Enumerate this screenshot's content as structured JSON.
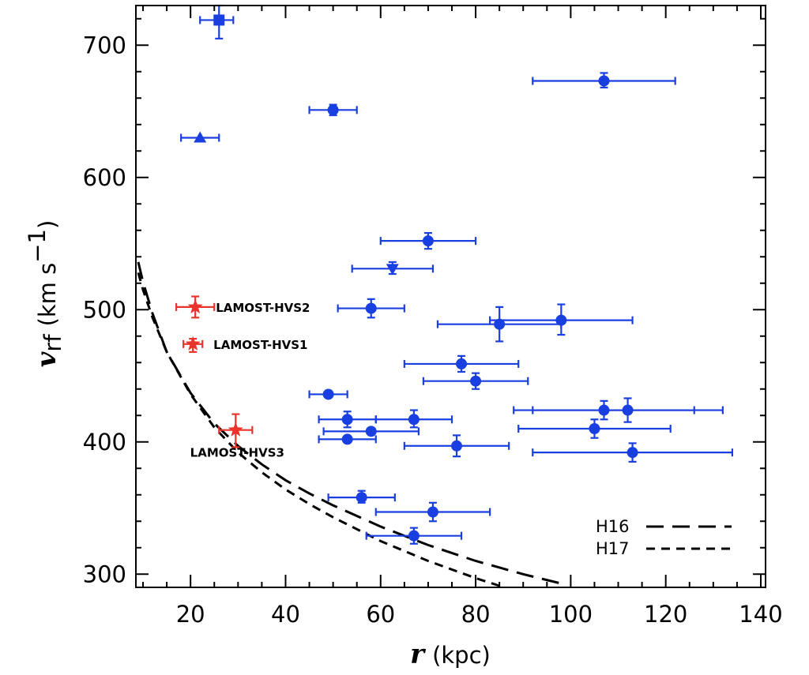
{
  "chart_data": {
    "type": "scatter",
    "xlabel": "r",
    "xlabel_unit": "(kpc)",
    "ylabel": "v",
    "ylabel_sub": "rf",
    "ylabel_unit_pre": "(km s",
    "ylabel_unit_sup": "−1",
    "ylabel_unit_post": ")",
    "xlim": [
      8.5,
      141
    ],
    "ylim": [
      290,
      730
    ],
    "xticks": [
      20,
      40,
      60,
      80,
      100,
      120,
      140
    ],
    "yticks": [
      300,
      400,
      500,
      600,
      700
    ],
    "xtick_labels": [
      "20",
      "40",
      "60",
      "80",
      "100",
      "120",
      "140"
    ],
    "ytick_labels": [
      "300",
      "400",
      "500",
      "600",
      "700"
    ],
    "grid": false,
    "colors": {
      "blue": "#1a3fe0",
      "red": "#e8342a",
      "axis": "#000000"
    },
    "series": [
      {
        "color": "#1a3fe0",
        "points": [
          {
            "x": 26,
            "y": 719,
            "xerr": [
              22,
              29
            ],
            "yerr": [
              705,
              730
            ],
            "marker": "square"
          },
          {
            "x": 22,
            "y": 630,
            "xerr": [
              18,
              26
            ],
            "yerr": [
              630,
              630
            ],
            "marker": "triangle-up"
          },
          {
            "x": 50,
            "y": 651,
            "xerr": [
              45,
              55
            ],
            "yerr": [
              647,
              655
            ],
            "marker": "circle"
          },
          {
            "x": 107,
            "y": 673,
            "xerr": [
              92,
              122
            ],
            "yerr": [
              668,
              679
            ],
            "marker": "circle"
          },
          {
            "x": 70,
            "y": 552,
            "xerr": [
              60,
              80
            ],
            "yerr": [
              546,
              558
            ],
            "marker": "circle"
          },
          {
            "x": 62.5,
            "y": 531,
            "xerr": [
              54,
              71
            ],
            "yerr": [
              527,
              536
            ],
            "marker": "triangle-down"
          },
          {
            "x": 58,
            "y": 501,
            "xerr": [
              51,
              65
            ],
            "yerr": [
              494,
              508
            ],
            "marker": "circle"
          },
          {
            "x": 85,
            "y": 489,
            "xerr": [
              72,
              98
            ],
            "yerr": [
              476,
              502
            ],
            "marker": "circle"
          },
          {
            "x": 98,
            "y": 492,
            "xerr": [
              83,
              113
            ],
            "yerr": [
              481,
              504
            ],
            "marker": "circle"
          },
          {
            "x": 77,
            "y": 459,
            "xerr": [
              65,
              89
            ],
            "yerr": [
              453,
              465
            ],
            "marker": "circle"
          },
          {
            "x": 80,
            "y": 446,
            "xerr": [
              69,
              91
            ],
            "yerr": [
              440,
              452
            ],
            "marker": "circle"
          },
          {
            "x": 49,
            "y": 436,
            "xerr": [
              45,
              53
            ],
            "yerr": [
              436,
              436
            ],
            "marker": "circle"
          },
          {
            "x": 53,
            "y": 417,
            "xerr": [
              47,
              59
            ],
            "yerr": [
              411,
              423
            ],
            "marker": "circle"
          },
          {
            "x": 67,
            "y": 417,
            "xerr": [
              59,
              75
            ],
            "yerr": [
              411,
              424
            ],
            "marker": "circle"
          },
          {
            "x": 58,
            "y": 408,
            "xerr": [
              48,
              68
            ],
            "yerr": [
              408,
              408
            ],
            "marker": "circle"
          },
          {
            "x": 53,
            "y": 402,
            "xerr": [
              47,
              59
            ],
            "yerr": [
              402,
              402
            ],
            "marker": "circle"
          },
          {
            "x": 76,
            "y": 397,
            "xerr": [
              65,
              87
            ],
            "yerr": [
              389,
              405
            ],
            "marker": "circle"
          },
          {
            "x": 107,
            "y": 424,
            "xerr": [
              88,
              126
            ],
            "yerr": [
              417,
              431
            ],
            "marker": "circle"
          },
          {
            "x": 112,
            "y": 424,
            "xerr": [
              92,
              132
            ],
            "yerr": [
              415,
              433
            ],
            "marker": "circle"
          },
          {
            "x": 105,
            "y": 410,
            "xerr": [
              89,
              121
            ],
            "yerr": [
              403,
              417
            ],
            "marker": "circle"
          },
          {
            "x": 113,
            "y": 392,
            "xerr": [
              92,
              134
            ],
            "yerr": [
              385,
              399
            ],
            "marker": "circle"
          },
          {
            "x": 56,
            "y": 358,
            "xerr": [
              49,
              63
            ],
            "yerr": [
              354,
              363
            ],
            "marker": "circle"
          },
          {
            "x": 71,
            "y": 347,
            "xerr": [
              59,
              83
            ],
            "yerr": [
              340,
              354
            ],
            "marker": "circle"
          },
          {
            "x": 67,
            "y": 329,
            "xerr": [
              57,
              77
            ],
            "yerr": [
              323,
              335
            ],
            "marker": "circle"
          }
        ]
      },
      {
        "color": "#e8342a",
        "points": [
          {
            "x": 21,
            "y": 502,
            "xerr": [
              17,
              25
            ],
            "yerr": [
              494,
              510
            ],
            "marker": "star",
            "label": "LAMOST-HVS2"
          },
          {
            "x": 20.5,
            "y": 474,
            "xerr": [
              18.5,
              22.5
            ],
            "yerr": [
              468,
              478
            ],
            "marker": "star",
            "label": "LAMOST-HVS1"
          },
          {
            "x": 29.5,
            "y": 409,
            "xerr": [
              26,
              33
            ],
            "yerr": [
              396,
              421
            ],
            "marker": "star",
            "label": "LAMOST-HVS3"
          }
        ]
      }
    ],
    "curves": [
      {
        "name": "H16",
        "style": "long-dash",
        "points": [
          [
            9,
            536
          ],
          [
            10,
            521
          ],
          [
            12,
            497
          ],
          [
            15,
            468
          ],
          [
            20,
            437
          ],
          [
            25,
            414
          ],
          [
            30,
            397
          ],
          [
            35,
            383
          ],
          [
            40,
            371
          ],
          [
            45,
            361
          ],
          [
            50,
            352
          ],
          [
            60,
            336
          ],
          [
            70,
            322
          ],
          [
            80,
            310
          ],
          [
            90,
            300
          ],
          [
            99,
            292
          ]
        ]
      },
      {
        "name": "H17",
        "style": "short-dash",
        "points": [
          [
            9,
            528
          ],
          [
            10,
            515
          ],
          [
            12,
            494
          ],
          [
            15,
            468
          ],
          [
            20,
            436
          ],
          [
            25,
            411
          ],
          [
            30,
            392
          ],
          [
            35,
            377
          ],
          [
            40,
            364
          ],
          [
            45,
            353
          ],
          [
            50,
            343
          ],
          [
            60,
            325
          ],
          [
            70,
            310
          ],
          [
            80,
            297
          ],
          [
            86,
            290
          ]
        ]
      }
    ],
    "legend": {
      "position": "bottom-right",
      "entries": [
        {
          "label": "H16",
          "style": "long-dash"
        },
        {
          "label": "H17",
          "style": "short-dash"
        }
      ]
    }
  }
}
